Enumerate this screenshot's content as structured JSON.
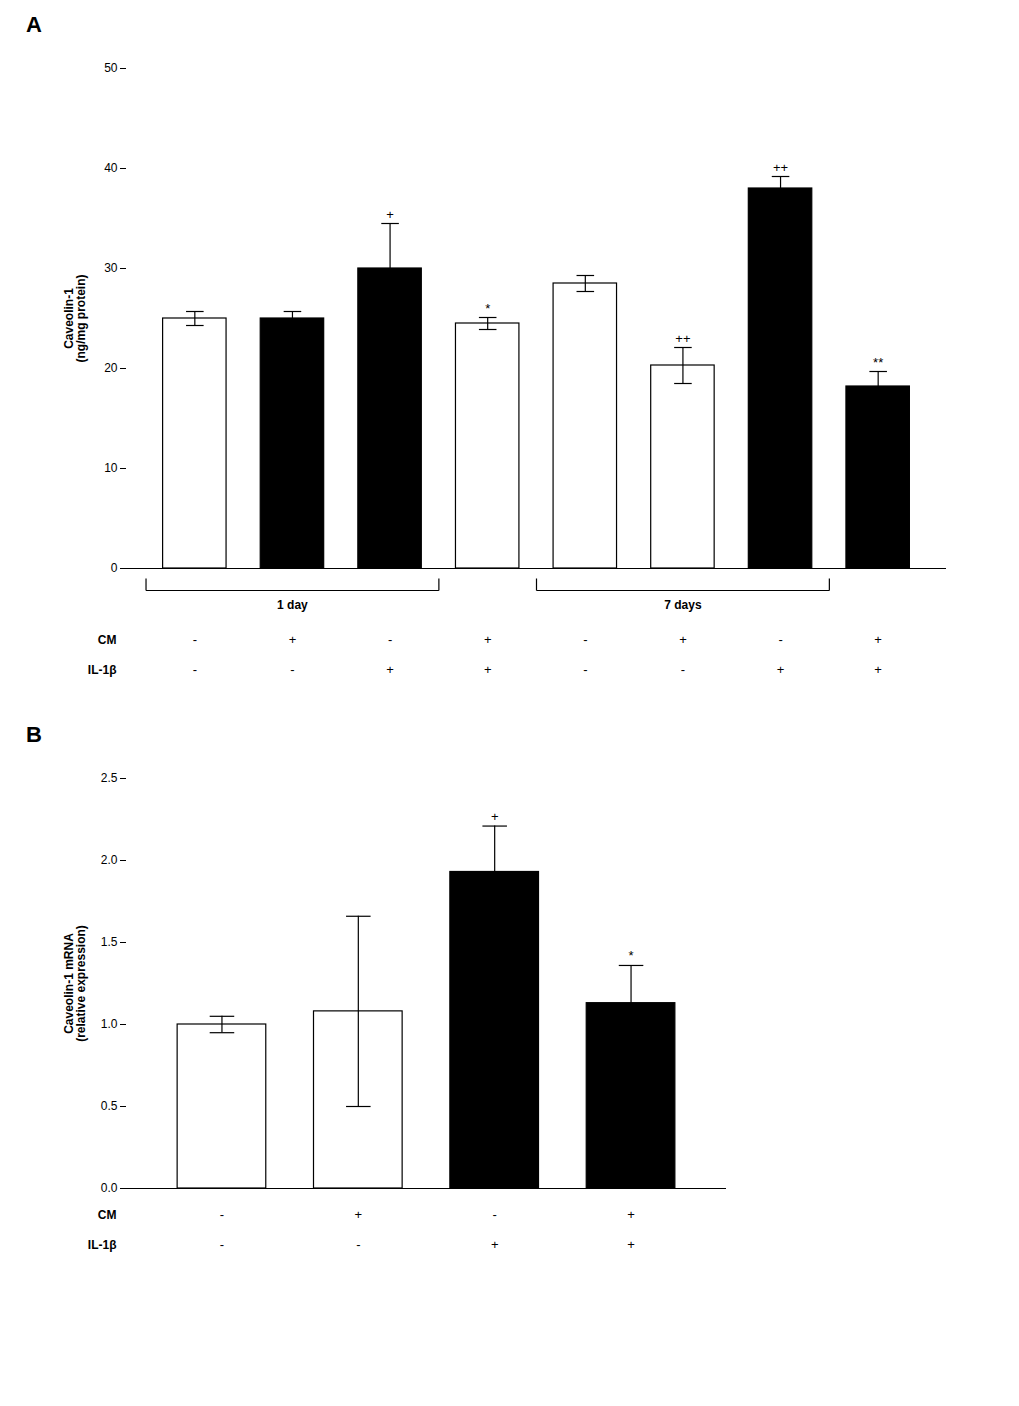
{
  "chart_data": [
    {
      "type": "bar",
      "title": "A",
      "ylabel": "Caveolin-1\n(ng/mg protein)",
      "categories": [
        null,
        null,
        null,
        null,
        null,
        null,
        null,
        null
      ],
      "values": [
        25.0,
        25.0,
        30.0,
        24.5,
        28.5,
        20.3,
        38.0,
        18.2
      ],
      "errors": [
        0.7,
        0.7,
        4.5,
        0.6,
        0.8,
        1.8,
        1.2,
        1.5
      ],
      "colors": [
        "white",
        "black",
        "black",
        "white",
        "white",
        "white",
        "black",
        "black"
      ],
      "annotations": [
        null,
        null,
        "+",
        "*",
        null,
        "++",
        "++",
        "**"
      ],
      "groups": [
        {
          "label": "1 day",
          "first": 1,
          "last": 3
        },
        {
          "label": "7 days",
          "first": 5,
          "last": 7
        }
      ],
      "rows": [
        {
          "label": "CM",
          "values": [
            "-",
            "+",
            "-",
            "+",
            "-",
            "+",
            "-",
            "+"
          ]
        },
        {
          "label": "IL-1β",
          "values": [
            "-",
            "-",
            "+",
            "+",
            "-",
            "-",
            "+",
            "+"
          ]
        }
      ],
      "ylim": [
        0,
        50
      ],
      "yticks": [
        0,
        10,
        20,
        30,
        40,
        50
      ],
      "tick_labels": "y",
      "grid": false
    },
    {
      "type": "bar",
      "title": "B",
      "ylabel": "Caveolin-1 mRNA\n(relative expression)",
      "categories": [
        null,
        null,
        null,
        null
      ],
      "values": [
        1.0,
        1.08,
        1.93,
        1.13
      ],
      "errors": [
        0.05,
        0.58,
        0.28,
        0.23
      ],
      "colors": [
        "white",
        "white",
        "black",
        "black"
      ],
      "annotations": [
        null,
        null,
        "+",
        "*"
      ],
      "rows": [
        {
          "label": "CM",
          "values": [
            "-",
            "+",
            "-",
            "+"
          ]
        },
        {
          "label": "IL-1β",
          "values": [
            "-",
            "-",
            "+",
            "+"
          ]
        }
      ],
      "ylim": [
        0,
        2.5
      ],
      "yticks": [
        {
          "value": 0,
          "label": "0.0"
        },
        0.5,
        {
          "value": 1,
          "label": "1.0"
        },
        1.5,
        {
          "value": 2,
          "label": "2.0"
        },
        2.5
      ],
      "tick_labels": "y",
      "grid": false
    }
  ]
}
